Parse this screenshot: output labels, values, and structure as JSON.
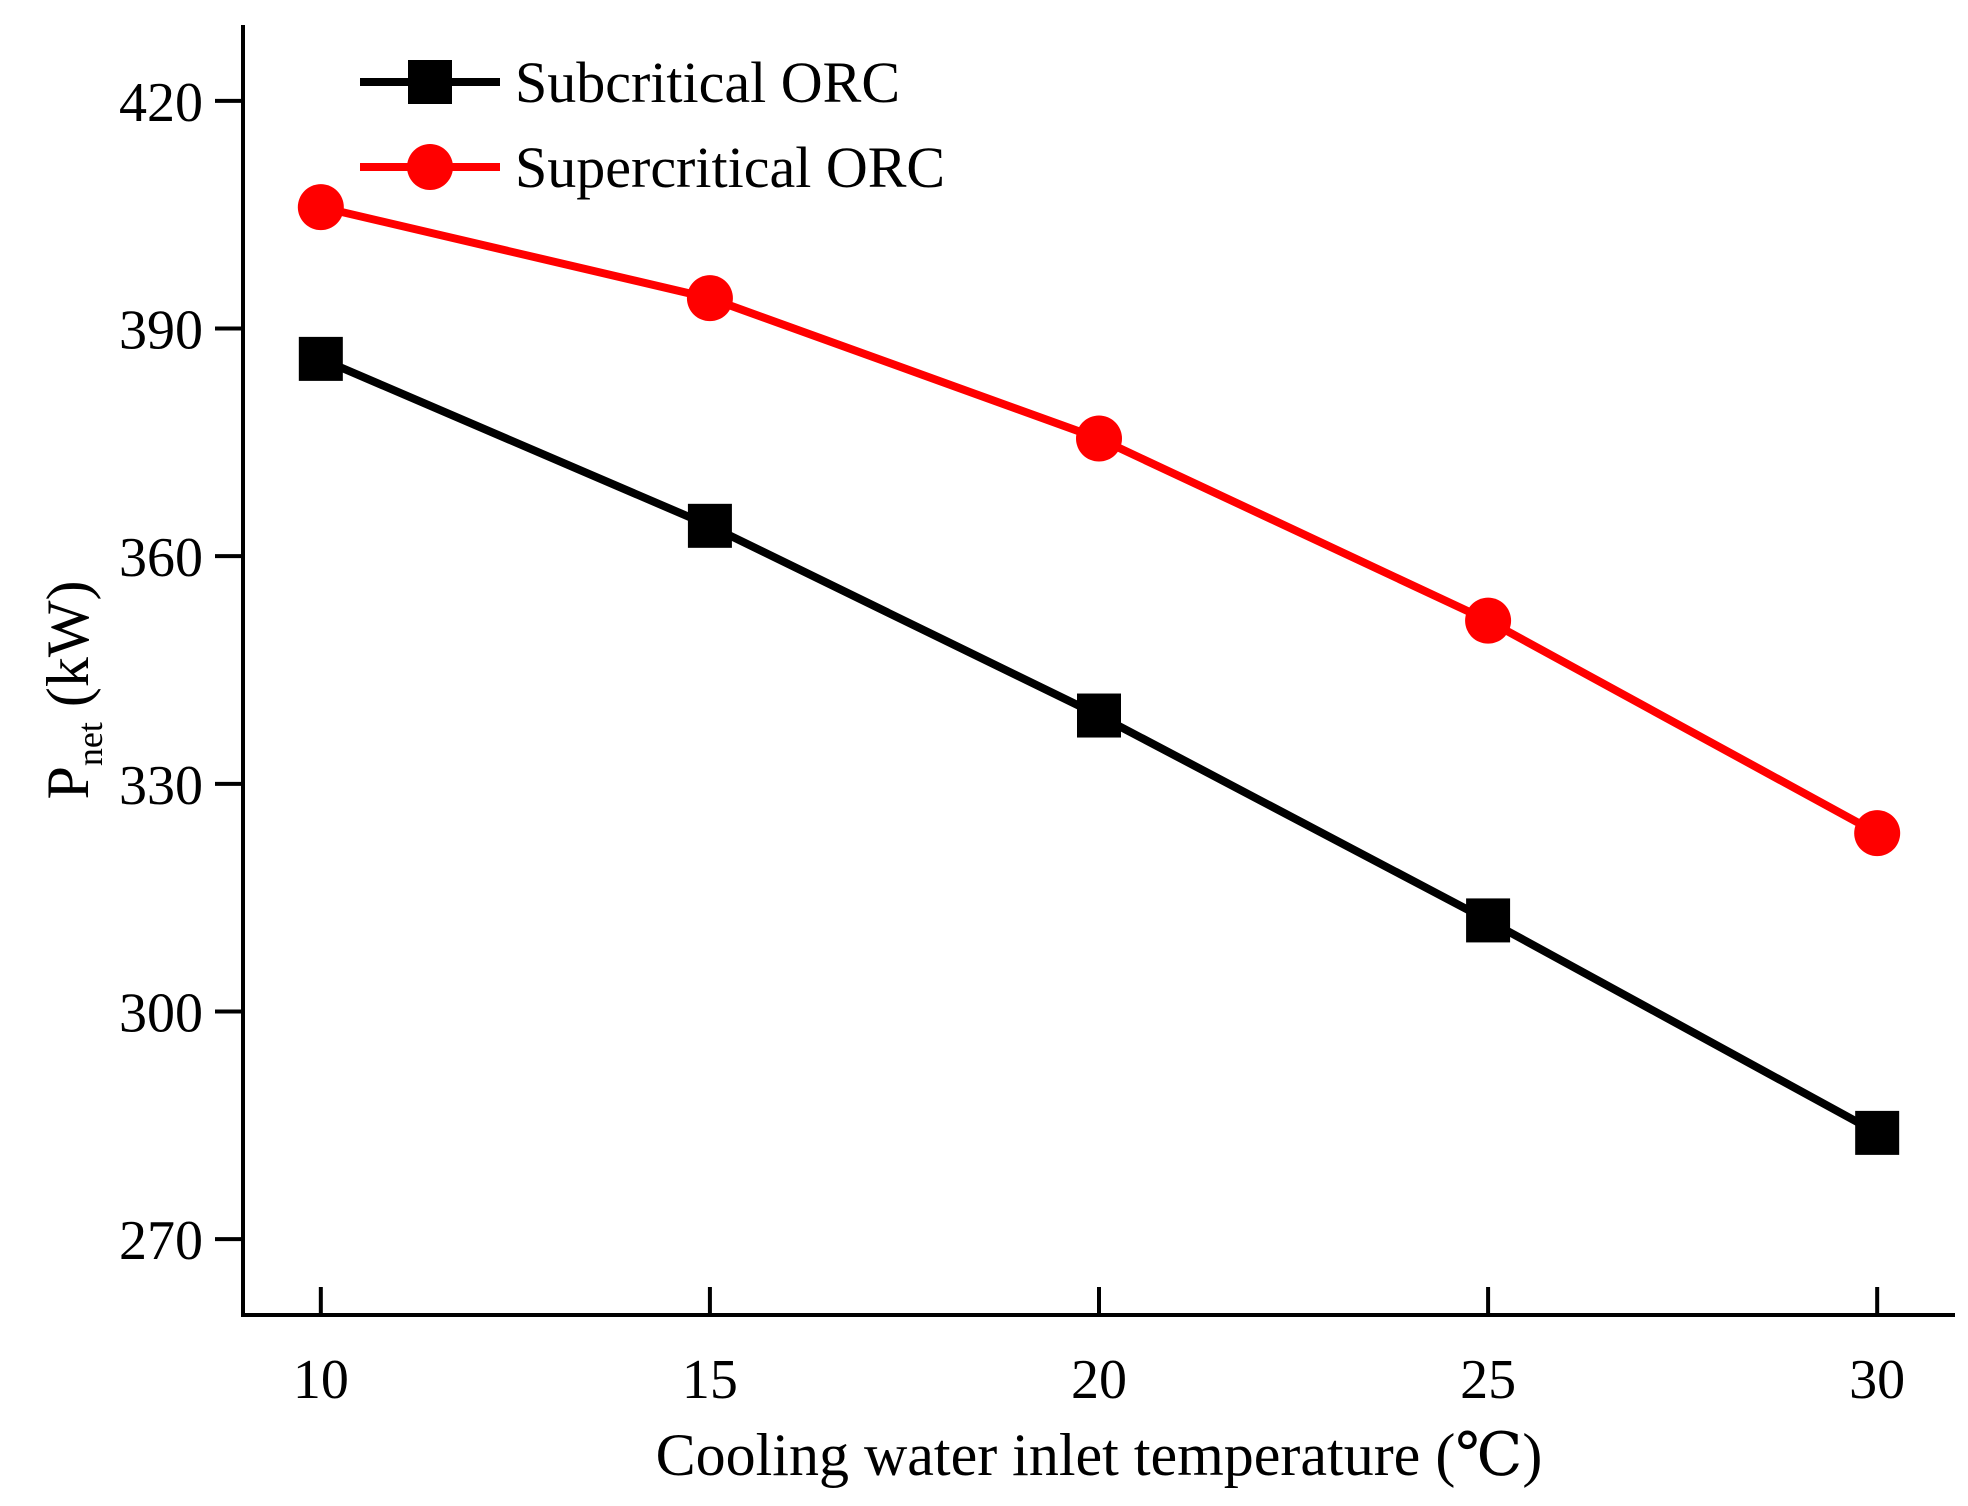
{
  "chart_data": {
    "type": "line",
    "title": "",
    "xlabel": "Cooling water inlet temperature (℃)",
    "ylabel_main": "P",
    "ylabel_sub": "net",
    "ylabel_unit": " (kW)",
    "x": [
      10,
      15,
      20,
      25,
      30
    ],
    "xticks": [
      10,
      15,
      20,
      25,
      30
    ],
    "xtick_labels": [
      "10",
      "15",
      "20",
      "25",
      "30"
    ],
    "yticks": [
      270,
      300,
      330,
      360,
      390,
      420
    ],
    "ytick_labels": [
      "270",
      "300",
      "330",
      "360",
      "390",
      "420"
    ],
    "xlim": [
      9,
      31
    ],
    "ylim": [
      260,
      430
    ],
    "grid": false,
    "legend_position": "top-left",
    "series": [
      {
        "name": "Subcritical ORC",
        "values": [
          386,
          364,
          339,
          312,
          284
        ],
        "color": "#000000",
        "marker": "square"
      },
      {
        "name": "Supercritical ORC",
        "values": [
          406,
          394,
          375.5,
          351.5,
          323.5
        ],
        "color": "#ff0000",
        "marker": "circle"
      }
    ]
  }
}
